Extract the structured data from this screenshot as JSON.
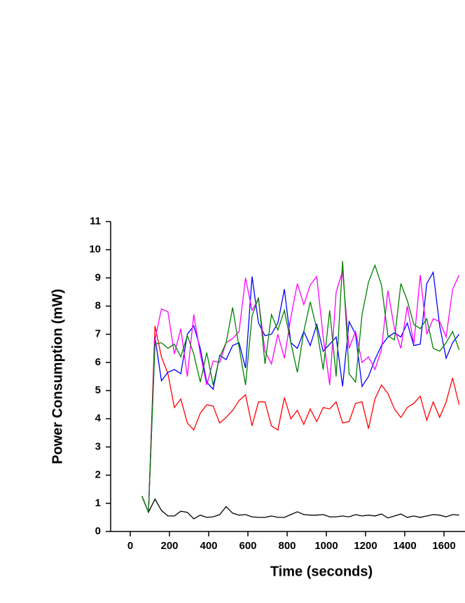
{
  "chart_data": {
    "type": "line",
    "x_label": "Time (seconds)",
    "y_label": "Power Consumption (mW)",
    "x": [
      60,
      93,
      126,
      159,
      192,
      225,
      258,
      291,
      324,
      357,
      390,
      423,
      456,
      489,
      522,
      555,
      588,
      621,
      654,
      687,
      720,
      753,
      786,
      819,
      852,
      885,
      918,
      951,
      984,
      1017,
      1050,
      1083,
      1116,
      1149,
      1182,
      1215,
      1248,
      1281,
      1314,
      1347,
      1380,
      1413,
      1446,
      1479,
      1512,
      1545,
      1578,
      1611,
      1644,
      1677
    ],
    "series": [
      {
        "color": "#000000",
        "values": [
          1.25,
          0.68,
          1.15,
          0.75,
          0.55,
          0.55,
          0.72,
          0.68,
          0.45,
          0.58,
          0.5,
          0.52,
          0.6,
          0.88,
          0.65,
          0.58,
          0.6,
          0.52,
          0.5,
          0.5,
          0.55,
          0.5,
          0.5,
          0.6,
          0.7,
          0.6,
          0.58,
          0.58,
          0.6,
          0.52,
          0.52,
          0.55,
          0.52,
          0.6,
          0.55,
          0.58,
          0.55,
          0.62,
          0.48,
          0.55,
          0.62,
          0.5,
          0.55,
          0.5,
          0.55,
          0.6,
          0.58,
          0.52,
          0.6,
          0.58
        ]
      },
      {
        "color": "#ff0000",
        "values": [
          1.25,
          0.68,
          7.3,
          6.2,
          5.6,
          4.4,
          4.7,
          3.85,
          3.6,
          4.2,
          4.5,
          4.45,
          3.85,
          4.05,
          4.3,
          4.65,
          4.85,
          3.75,
          4.6,
          4.6,
          3.75,
          3.6,
          4.75,
          4.0,
          4.3,
          3.8,
          4.35,
          3.9,
          4.4,
          4.35,
          4.6,
          3.85,
          3.9,
          4.55,
          4.6,
          3.65,
          4.7,
          5.2,
          4.9,
          4.35,
          4.05,
          4.4,
          4.55,
          4.8,
          3.95,
          4.6,
          4.05,
          4.6,
          5.45,
          4.5
        ]
      },
      {
        "color": "#0000ff",
        "values": [
          1.25,
          0.68,
          6.9,
          5.35,
          5.65,
          5.75,
          5.6,
          7.0,
          7.3,
          6.5,
          5.3,
          5.05,
          6.25,
          6.1,
          6.6,
          6.7,
          5.8,
          9.05,
          7.4,
          6.95,
          7.0,
          7.4,
          8.6,
          6.7,
          6.5,
          7.1,
          6.6,
          7.35,
          6.4,
          6.65,
          6.9,
          5.15,
          7.45,
          7.0,
          5.15,
          5.5,
          6.1,
          6.6,
          6.9,
          7.05,
          6.9,
          7.4,
          6.6,
          6.65,
          8.8,
          9.2,
          7.3,
          6.15,
          6.7,
          7.0
        ]
      },
      {
        "color": "#ff00ff",
        "values": [
          1.25,
          0.68,
          6.8,
          7.9,
          7.8,
          6.3,
          7.2,
          5.5,
          7.7,
          6.3,
          5.2,
          6.05,
          6.0,
          6.7,
          6.85,
          7.1,
          9.0,
          7.85,
          8.25,
          6.4,
          5.95,
          7.0,
          6.15,
          7.6,
          8.8,
          8.05,
          8.75,
          9.05,
          6.9,
          5.2,
          8.5,
          9.25,
          6.5,
          7.1,
          6.0,
          6.2,
          5.75,
          6.45,
          8.55,
          7.2,
          6.5,
          8.0,
          6.65,
          9.1,
          7.0,
          7.55,
          7.45,
          6.9,
          8.6,
          9.1
        ]
      },
      {
        "color": "#008000",
        "values": [
          1.25,
          0.68,
          6.65,
          6.7,
          6.5,
          6.65,
          6.2,
          6.95,
          6.3,
          5.3,
          6.35,
          5.2,
          6.2,
          6.7,
          7.95,
          6.55,
          5.2,
          7.65,
          8.3,
          5.95,
          7.7,
          7.15,
          7.85,
          6.7,
          5.65,
          7.1,
          8.15,
          7.2,
          5.75,
          7.85,
          5.5,
          9.6,
          5.6,
          5.3,
          7.7,
          8.85,
          9.45,
          8.75,
          6.95,
          6.8,
          8.8,
          8.2,
          7.35,
          7.2,
          7.55,
          6.5,
          6.4,
          6.7,
          7.1,
          6.45
        ]
      }
    ],
    "xlim": [
      -100,
      1700
    ],
    "ylim": [
      0,
      11
    ],
    "xticks": [
      0,
      200,
      400,
      600,
      800,
      1000,
      1200,
      1400,
      1600
    ],
    "yticks": [
      0,
      1,
      2,
      3,
      4,
      5,
      6,
      7,
      8,
      9,
      10,
      11
    ]
  }
}
